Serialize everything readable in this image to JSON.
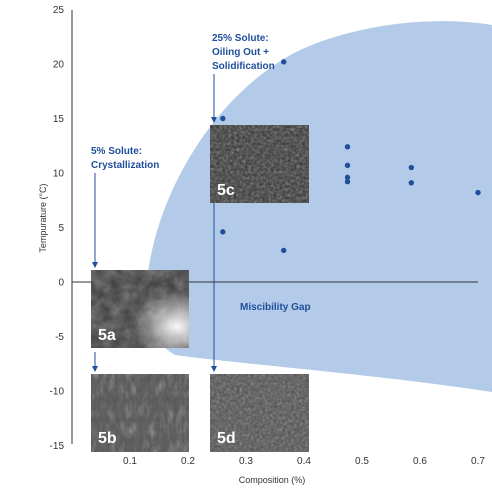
{
  "chart_data": {
    "type": "scatter",
    "xlabel": "Composition (%)",
    "ylabel": "Tempurature (°C)",
    "xlim": [
      0,
      0.7
    ],
    "ylim": [
      -15,
      25
    ],
    "x_ticks": [
      0.1,
      0.2,
      0.3,
      0.4,
      0.5,
      0.6,
      0.7
    ],
    "y_ticks": [
      25,
      20,
      15,
      10,
      5,
      0,
      -5,
      -10,
      -15
    ],
    "points": [
      {
        "x": 0.26,
        "y": 15.0
      },
      {
        "x": 0.365,
        "y": 20.2
      },
      {
        "x": 0.26,
        "y": 4.6
      },
      {
        "x": 0.365,
        "y": 2.9
      },
      {
        "x": 0.475,
        "y": 12.4
      },
      {
        "x": 0.475,
        "y": 10.7
      },
      {
        "x": 0.475,
        "y": 9.6
      },
      {
        "x": 0.475,
        "y": 9.2
      },
      {
        "x": 0.585,
        "y": 10.5
      },
      {
        "x": 0.585,
        "y": 9.1
      },
      {
        "x": 0.7,
        "y": 8.2
      }
    ],
    "region_label": "Miscibility Gap",
    "grid": false,
    "colors": {
      "region": "#b3cbe8",
      "points": "#1f4f9a",
      "annotation": "#1f4f9a"
    },
    "annotations": [
      {
        "lines": [
          "25% Solute:",
          "Oiling Out +",
          "Solidification"
        ]
      },
      {
        "lines": [
          "5% Solute:",
          "Crystallization"
        ]
      }
    ],
    "photos": [
      {
        "label": "5c"
      },
      {
        "label": "5a"
      },
      {
        "label": "5b"
      },
      {
        "label": "5d"
      }
    ]
  }
}
